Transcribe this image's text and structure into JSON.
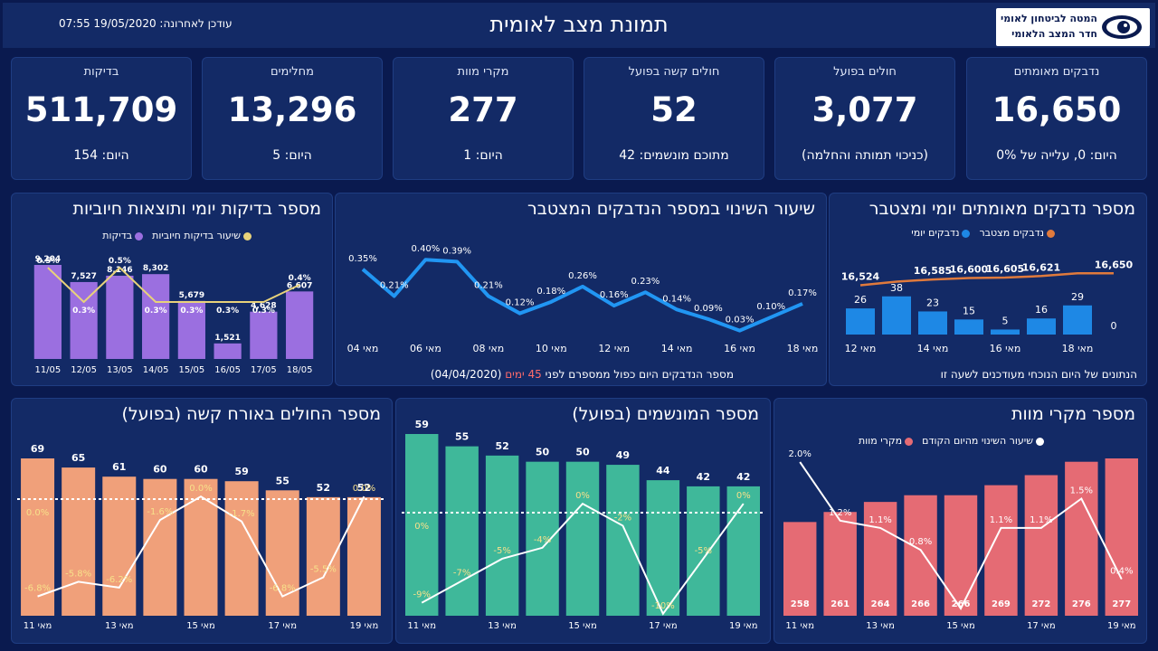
{
  "header": {
    "title": "תמונת מצב לאומית",
    "updated": "עודכן לאחרונה: 19/05/2020 07:55",
    "logo_line1": "המטה לביטחון לאומי",
    "logo_line2": "חדר המצב הלאומי"
  },
  "cards": [
    {
      "label": "נדבקים מאומתים",
      "value": "16,650",
      "sub": "היום: 0, עלייה של 0%"
    },
    {
      "label": "חולים בפועל",
      "value": "3,077",
      "sub": "(כניכוי תמותה והחלמה)"
    },
    {
      "label": "חולים קשה בפועל",
      "value": "52",
      "sub": "מתוכם מונשמים: 42"
    },
    {
      "label": "מקרי מוות",
      "value": "277",
      "sub": "היום: 1"
    },
    {
      "label": "מחלימים",
      "value": "13,296",
      "sub": "היום: 5"
    },
    {
      "label": "בדיקות",
      "value": "511,709",
      "sub": "היום: 154"
    }
  ],
  "panels": {
    "confirmed": {
      "title": "מספר נדבקים מאומתים יומי ומצטבר",
      "legend_cum": "נדבקים מצטבר",
      "legend_daily": "נדבקים יומי",
      "footer": "הנתונים של היום הנוכחי מעודכנים לשעה זו"
    },
    "rate": {
      "title": "שיעור השינוי במספר הנדבקים המצטבר",
      "footer_a": "מספר הנדבקים היום כפול ממספרם לפני",
      "footer_days": "45 ימים",
      "footer_date": "(04/04/2020)"
    },
    "tests": {
      "title": "מספר בדיקות יומי ותוצאות חיוביות",
      "legend_rate": "שיעור בדיקות חיוביות",
      "legend_tests": "בדיקות"
    },
    "severe": {
      "title": "מספר החולים באורח קשה (בפועל)"
    },
    "ventilated": {
      "title": "מספר המונשמים (בפועל)"
    },
    "deaths": {
      "title": "מספר מקרי מוות",
      "legend_change": "שיעור השינוי מהיום הקודם",
      "legend_deaths": "מקרי מוות"
    }
  },
  "colors": {
    "background": "#0a1a4f",
    "panel": "#132a66",
    "daily_bar": "#1e88e5",
    "cumulative_line": "#e07a3c",
    "rate_line": "#2196f3",
    "tests_bar": "#9b6fe0",
    "positive_line": "#e8d27a",
    "severe_bar": "#f0a07a",
    "ventilated_bar": "#3fb89a",
    "deaths_bar": "#e56b74"
  },
  "chart_data": [
    {
      "id": "confirmed",
      "type": "bar",
      "categories": [
        "12 מאי",
        "13 מאי",
        "14 מאי",
        "15 מאי",
        "16 מאי",
        "17 מאי",
        "18 מאי",
        "19 מאי"
      ],
      "tick_labels": [
        "12 מאי",
        "14 מאי",
        "16 מאי",
        "18 מאי"
      ],
      "series": [
        {
          "name": "נדבקים יומי",
          "kind": "bar",
          "values": [
            26,
            38,
            23,
            15,
            5,
            16,
            29,
            0
          ],
          "labels": [
            "26",
            "38",
            "23",
            "15",
            "5",
            "16",
            "29",
            "0"
          ]
        },
        {
          "name": "נדבקים מצטבר",
          "kind": "line",
          "values": [
            16524,
            16562,
            16585,
            16600,
            16605,
            16621,
            16650,
            16650
          ],
          "labels": [
            "16,524",
            "",
            "16,585",
            "16,600",
            "16,605",
            "16,621",
            "",
            "16,650"
          ]
        }
      ]
    },
    {
      "id": "rate",
      "type": "line",
      "categories": [
        "04 מאי",
        "05 מאי",
        "06 מאי",
        "07 מאי",
        "08 מאי",
        "09 מאי",
        "10 מאי",
        "11 מאי",
        "12 מאי",
        "13 מאי",
        "14 מאי",
        "15 מאי",
        "16 מאי",
        "17 מאי",
        "18 מאי"
      ],
      "tick_labels": [
        "04 מאי",
        "06 מאי",
        "08 מאי",
        "10 מאי",
        "12 מאי",
        "14 מאי",
        "16 מאי",
        "18 מאי"
      ],
      "series": [
        {
          "name": "שיעור השינוי",
          "values": [
            0.35,
            0.21,
            0.4,
            0.39,
            0.21,
            0.12,
            0.18,
            0.26,
            0.16,
            0.23,
            0.14,
            0.09,
            0.03,
            0.1,
            0.17
          ],
          "labels": [
            "0.35%",
            "0.21%",
            "0.40%",
            "0.39%",
            "0.21%",
            "0.12%",
            "0.18%",
            "0.26%",
            "0.16%",
            "0.23%",
            "0.14%",
            "0.09%",
            "0.03%",
            "0.10%",
            "0.17%"
          ]
        }
      ],
      "ylim": [
        0,
        0.5
      ]
    },
    {
      "id": "tests",
      "type": "bar",
      "categories": [
        "11/05",
        "12/05",
        "13/05",
        "14/05",
        "15/05",
        "16/05",
        "17/05",
        "18/05"
      ],
      "series": [
        {
          "name": "בדיקות",
          "kind": "bar",
          "values": [
            9204,
            7527,
            8146,
            8302,
            5679,
            1521,
            4628,
            6607
          ],
          "labels": [
            "9,204",
            "7,527",
            "8,146",
            "8,302",
            "5,679",
            "1,521",
            "4,628",
            "6,607"
          ]
        },
        {
          "name": "שיעור בדיקות חיוביות",
          "kind": "line",
          "values": [
            0.5,
            0.3,
            0.5,
            0.3,
            0.3,
            0.3,
            0.3,
            0.4
          ],
          "labels": [
            "0.5%",
            "0.3%",
            "0.5%",
            "0.3%",
            "0.3%",
            "0.3%",
            "0.3%",
            "0.4%"
          ]
        }
      ],
      "ylim": [
        0,
        10000
      ]
    },
    {
      "id": "severe",
      "type": "bar",
      "categories": [
        "11 מאי",
        "12 מאי",
        "13 מאי",
        "14 מאי",
        "15 מאי",
        "16 מאי",
        "17 מאי",
        "18 מאי",
        "19 מאי"
      ],
      "tick_labels": [
        "11 מאי",
        "13 מאי",
        "15 מאי",
        "17 מאי",
        "19 מאי"
      ],
      "series": [
        {
          "name": "חולים קשה",
          "kind": "bar",
          "values": [
            69,
            65,
            61,
            60,
            60,
            59,
            55,
            52,
            52
          ]
        },
        {
          "name": "שיעור שינוי",
          "kind": "line",
          "values": [
            -6.8,
            -5.8,
            -6.2,
            -1.6,
            0.0,
            -1.7,
            -6.8,
            -5.5,
            0.0
          ],
          "labels": [
            "-6.8%",
            "-5.8%",
            "-6.2%",
            "-1.6%",
            "0.0%",
            "-1.7%",
            "-6.8%",
            "-5.5%",
            "0.0%"
          ]
        }
      ],
      "extra_labels": [
        "0.0%"
      ]
    },
    {
      "id": "ventilated",
      "type": "bar",
      "categories": [
        "11 מאי",
        "12 מאי",
        "13 מאי",
        "14 מאי",
        "15 מאי",
        "16 מאי",
        "17 מאי",
        "18 מאי",
        "19 מאי"
      ],
      "tick_labels": [
        "11 מאי",
        "13 מאי",
        "15 מאי",
        "17 מאי",
        "19 מאי"
      ],
      "series": [
        {
          "name": "מונשמים",
          "kind": "bar",
          "values": [
            59,
            55,
            52,
            50,
            50,
            49,
            44,
            42,
            42
          ]
        },
        {
          "name": "שיעור שינוי",
          "kind": "line",
          "values": [
            -9,
            -7,
            -5,
            -4,
            0,
            -2,
            -10,
            -5,
            0
          ],
          "labels": [
            "-9%",
            "-7%",
            "-5%",
            "-4%",
            "0%",
            "-2%",
            "-10%",
            "-5%",
            "0%"
          ]
        }
      ],
      "extra_labels": [
        "0%"
      ]
    },
    {
      "id": "deaths",
      "type": "bar",
      "categories": [
        "11 מאי",
        "12 מאי",
        "13 מאי",
        "14 מאי",
        "15 מאי",
        "16 מאי",
        "17 מאי",
        "18 מאי",
        "19 מאי"
      ],
      "tick_labels": [
        "11 מאי",
        "13 מאי",
        "15 מאי",
        "17 מאי",
        "19 מאי"
      ],
      "series": [
        {
          "name": "מקרי מוות",
          "kind": "bar",
          "values": [
            258,
            261,
            264,
            266,
            266,
            269,
            272,
            276,
            277
          ]
        },
        {
          "name": "שיעור השינוי מהיום הקודם",
          "kind": "line",
          "values": [
            2.0,
            1.2,
            1.1,
            0.8,
            0.0,
            1.1,
            1.1,
            1.5,
            0.4
          ],
          "labels": [
            "2.0%",
            "1.2%",
            "1.1%",
            "0.8%",
            "",
            "1.1%",
            "1.1%",
            "1.5%",
            "0.4%"
          ]
        }
      ]
    }
  ]
}
